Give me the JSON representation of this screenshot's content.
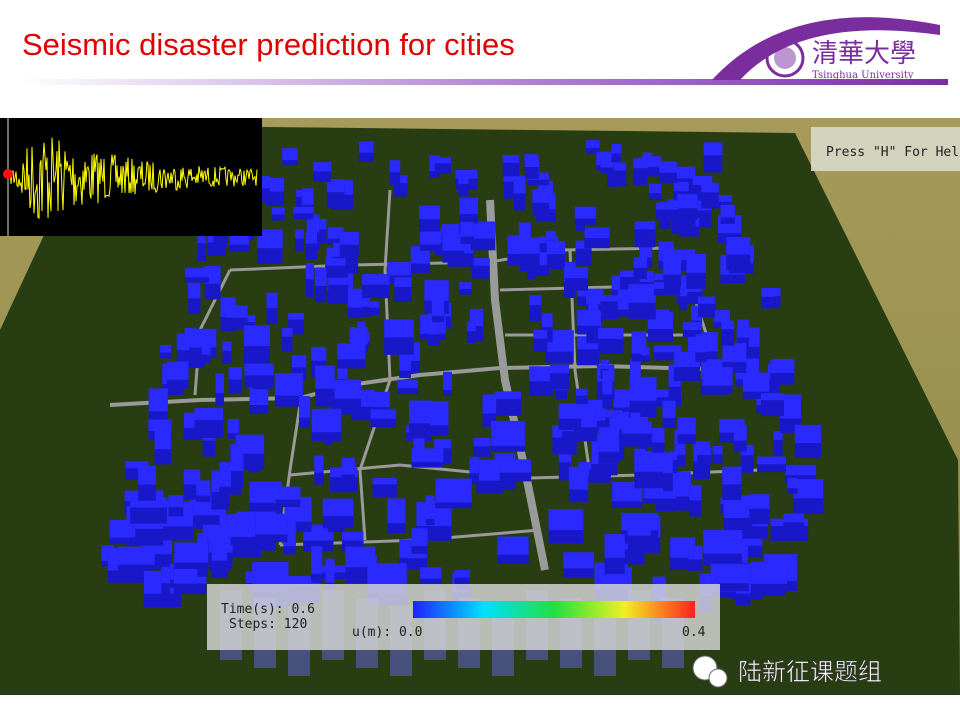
{
  "header": {
    "title": "Seismic disaster prediction for cities",
    "logo_text": "清華大學",
    "logo_subtitle": "Tsinghua University"
  },
  "simulation": {
    "help": "Press \"H\" For Help",
    "time": "Time(s): 0.6",
    "steps": "Steps: 120",
    "legend_label": "u(m): 0.0",
    "legend_max": "0.4"
  },
  "footer": {
    "watermark": "陆新征课题组"
  }
}
